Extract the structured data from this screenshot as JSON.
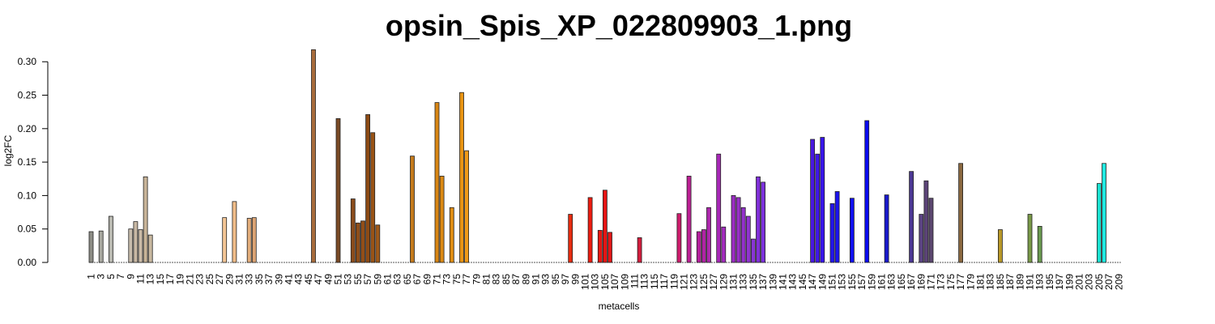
{
  "chart_data": {
    "type": "bar",
    "title": "opsin_Spis_XP_022809903_1.png",
    "xlabel": "metacells",
    "ylabel": "log2FC",
    "ylim": [
      0,
      0.32
    ],
    "yticks": [
      "0.00",
      "0.05",
      "0.10",
      "0.15",
      "0.20",
      "0.25",
      "0.30"
    ],
    "grid": false,
    "n": 209,
    "x_tick_every": 2,
    "bars": [
      {
        "x": 1,
        "y": 0.046,
        "color": "#8e8e86"
      },
      {
        "x": 3,
        "y": 0.047,
        "color": "#a8a8a0"
      },
      {
        "x": 5,
        "y": 0.069,
        "color": "#b8b8b0"
      },
      {
        "x": 9,
        "y": 0.05,
        "color": "#c8bcac"
      },
      {
        "x": 10,
        "y": 0.061,
        "color": "#c8b8a4"
      },
      {
        "x": 11,
        "y": 0.049,
        "color": "#ccbca8"
      },
      {
        "x": 12,
        "y": 0.128,
        "color": "#c8b498"
      },
      {
        "x": 13,
        "y": 0.041,
        "color": "#c8b8a0"
      },
      {
        "x": 28,
        "y": 0.067,
        "color": "#f4c696"
      },
      {
        "x": 30,
        "y": 0.091,
        "color": "#f0bc88"
      },
      {
        "x": 33,
        "y": 0.066,
        "color": "#e4ae7c"
      },
      {
        "x": 34,
        "y": 0.067,
        "color": "#dca474"
      },
      {
        "x": 46,
        "y": 0.318,
        "color": "#a86c3c"
      },
      {
        "x": 51,
        "y": 0.215,
        "color": "#7a4a26"
      },
      {
        "x": 54,
        "y": 0.095,
        "color": "#8a4c1c"
      },
      {
        "x": 55,
        "y": 0.059,
        "color": "#8e4e1a"
      },
      {
        "x": 56,
        "y": 0.062,
        "color": "#924e18"
      },
      {
        "x": 57,
        "y": 0.221,
        "color": "#8c4a14"
      },
      {
        "x": 58,
        "y": 0.194,
        "color": "#9a5416"
      },
      {
        "x": 59,
        "y": 0.056,
        "color": "#a05a1a"
      },
      {
        "x": 66,
        "y": 0.159,
        "color": "#c47a1c"
      },
      {
        "x": 71,
        "y": 0.239,
        "color": "#d88614"
      },
      {
        "x": 72,
        "y": 0.129,
        "color": "#dc8a14"
      },
      {
        "x": 74,
        "y": 0.082,
        "color": "#e08e14"
      },
      {
        "x": 76,
        "y": 0.254,
        "color": "#e89414"
      },
      {
        "x": 77,
        "y": 0.167,
        "color": "#f09a18"
      },
      {
        "x": 98,
        "y": 0.072,
        "color": "#e82c10"
      },
      {
        "x": 102,
        "y": 0.097,
        "color": "#ee1c10"
      },
      {
        "x": 104,
        "y": 0.048,
        "color": "#e81812"
      },
      {
        "x": 105,
        "y": 0.108,
        "color": "#e41414"
      },
      {
        "x": 106,
        "y": 0.045,
        "color": "#e01818"
      },
      {
        "x": 112,
        "y": 0.037,
        "color": "#d41c3c"
      },
      {
        "x": 120,
        "y": 0.073,
        "color": "#cc1c6c"
      },
      {
        "x": 122,
        "y": 0.129,
        "color": "#bc2094"
      },
      {
        "x": 124,
        "y": 0.046,
        "color": "#b4209c"
      },
      {
        "x": 125,
        "y": 0.049,
        "color": "#b024a4"
      },
      {
        "x": 126,
        "y": 0.082,
        "color": "#ac28ac"
      },
      {
        "x": 128,
        "y": 0.162,
        "color": "#a828b8"
      },
      {
        "x": 129,
        "y": 0.053,
        "color": "#a42cc0"
      },
      {
        "x": 131,
        "y": 0.1,
        "color": "#9c2cc4"
      },
      {
        "x": 132,
        "y": 0.097,
        "color": "#9830c8"
      },
      {
        "x": 133,
        "y": 0.082,
        "color": "#9430cc"
      },
      {
        "x": 134,
        "y": 0.069,
        "color": "#9034d0"
      },
      {
        "x": 135,
        "y": 0.035,
        "color": "#8834d4"
      },
      {
        "x": 136,
        "y": 0.128,
        "color": "#8030d8"
      },
      {
        "x": 137,
        "y": 0.12,
        "color": "#7c30dc"
      },
      {
        "x": 147,
        "y": 0.184,
        "color": "#4a18e0"
      },
      {
        "x": 148,
        "y": 0.162,
        "color": "#4018e8"
      },
      {
        "x": 149,
        "y": 0.187,
        "color": "#3814ec"
      },
      {
        "x": 151,
        "y": 0.088,
        "color": "#2414ec"
      },
      {
        "x": 152,
        "y": 0.106,
        "color": "#1c14f0"
      },
      {
        "x": 155,
        "y": 0.096,
        "color": "#1010f0"
      },
      {
        "x": 158,
        "y": 0.212,
        "color": "#0a0aee"
      },
      {
        "x": 162,
        "y": 0.101,
        "color": "#1818cc"
      },
      {
        "x": 167,
        "y": 0.136,
        "color": "#4c3894"
      },
      {
        "x": 169,
        "y": 0.072,
        "color": "#5c4484"
      },
      {
        "x": 170,
        "y": 0.122,
        "color": "#5c4478"
      },
      {
        "x": 171,
        "y": 0.096,
        "color": "#5c4870"
      },
      {
        "x": 177,
        "y": 0.148,
        "color": "#8a6840"
      },
      {
        "x": 185,
        "y": 0.049,
        "color": "#b89828"
      },
      {
        "x": 191,
        "y": 0.072,
        "color": "#7a9a48"
      },
      {
        "x": 193,
        "y": 0.054,
        "color": "#6a9a50"
      },
      {
        "x": 205,
        "y": 0.118,
        "color": "#1ce0d0"
      },
      {
        "x": 206,
        "y": 0.148,
        "color": "#20e8e0"
      }
    ]
  }
}
